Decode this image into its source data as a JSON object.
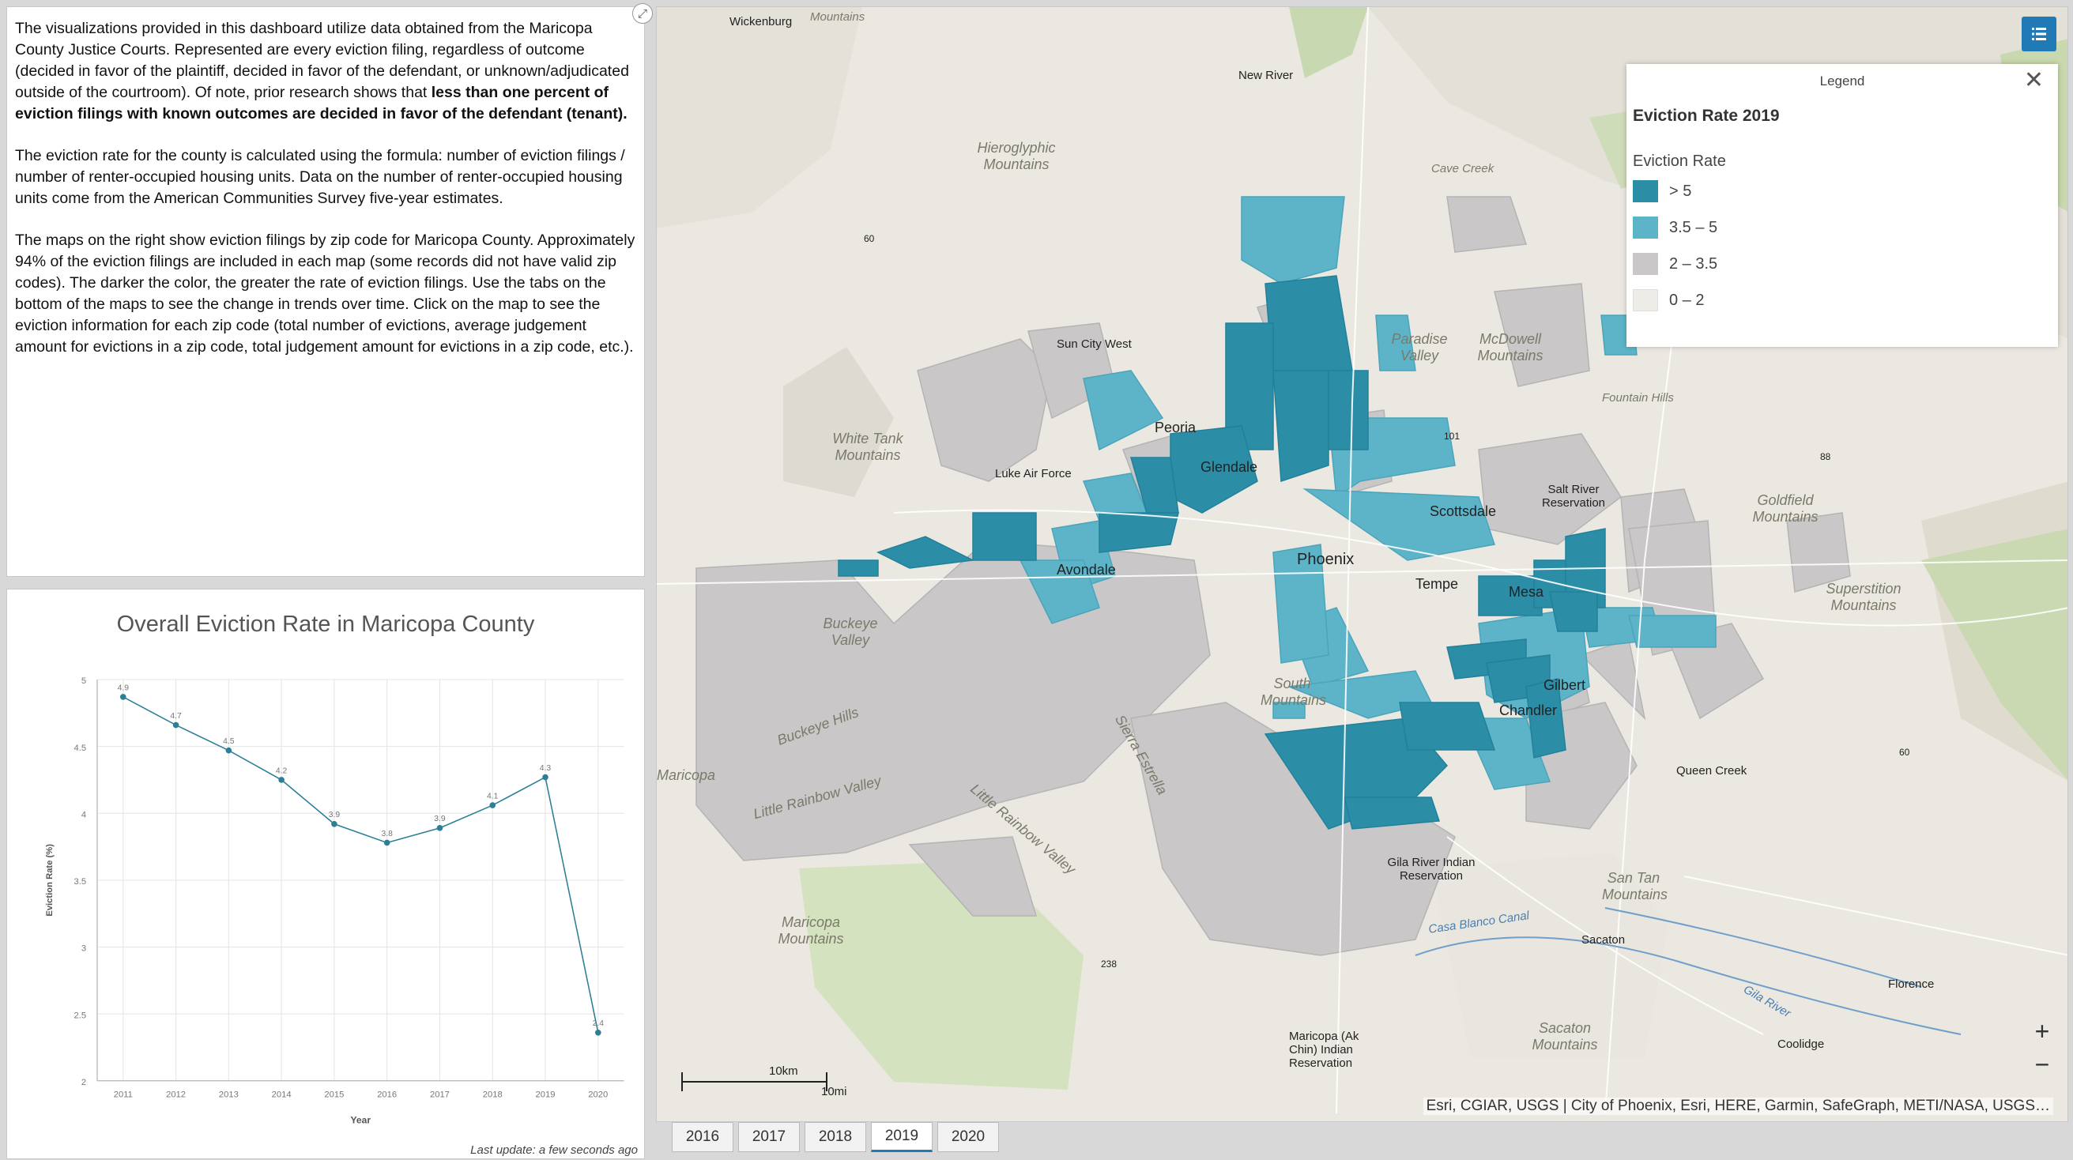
{
  "text_panel": {
    "p1_normal": "The visualizations provided in this dashboard utilize data obtained from the Maricopa County Justice Courts. Represented are every eviction filing, regardless of outcome (decided in favor of the plaintiff, decided in favor of the defendant, or unknown/adjudicated outside of the courtroom). Of note, prior research shows that ",
    "p1_bold": "less than one percent of eviction filings with known outcomes are decided in favor of the defendant (tenant).",
    "p2": "The eviction rate for the county is calculated using the formula: number of eviction filings / number of renter-occupied housing units. Data on the number of renter-occupied housing units come from the American Communities Survey five-year estimates.",
    "p3": "The maps on the right show eviction filings by zip code for Maricopa County. Approximately 94% of the eviction filings are included in each map (some records did not have valid zip codes). The darker the color, the greater the rate of eviction filings. Use the tabs on the bottom of the maps to see the change in trends over time. Click on the map to see the eviction information for each zip code (total number of evictions, average judgement amount for evictions in a zip code, total judgement amount for evictions in a zip code, etc.)."
  },
  "chart_panel": {
    "last_update": "Last update: a few seconds ago"
  },
  "chart_data": {
    "type": "line",
    "title": "Overall Eviction Rate in Maricopa County",
    "xlabel": "Year",
    "ylabel": "Eviction Rate (%)",
    "categories": [
      "2011",
      "2012",
      "2013",
      "2014",
      "2015",
      "2016",
      "2017",
      "2018",
      "2019",
      "2020"
    ],
    "values": [
      4.87,
      4.66,
      4.47,
      4.25,
      3.92,
      3.78,
      3.89,
      4.06,
      4.27,
      2.36
    ],
    "data_labels": [
      "4.9",
      "4.7",
      "4.5",
      "4.2",
      "3.9",
      "3.8",
      "3.9",
      "4.1",
      "4.3",
      "2.4"
    ],
    "yticks": [
      "2",
      "2.5",
      "3",
      "3.5",
      "4",
      "4.5",
      "5"
    ],
    "ylim": [
      2,
      5
    ],
    "grid": true,
    "color": "#2d7f96"
  },
  "map": {
    "legend_header": "Legend",
    "legend_title": "Eviction Rate 2019",
    "legend_field": "Eviction Rate",
    "legend_items": [
      {
        "label": "> 5",
        "color": "#2b8ea6"
      },
      {
        "label": "3.5 – 5",
        "color": "#5db4c8"
      },
      {
        "label": "2 – 3.5",
        "color": "#c9c7c7"
      },
      {
        "label": "0 – 2",
        "color": "#eeece6"
      }
    ],
    "attribution": "Esri, CGIAR, USGS | City of Phoenix, Esri, HERE, Garmin, SafeGraph, METI/NASA, USGS…",
    "scale_km": "10km",
    "scale_mi": "10mi",
    "labels": {
      "wickenburg": "Wickenburg",
      "new_river": "New River",
      "cave_creek": "Cave Creek",
      "hieroglyphic": "Hieroglyphic Mountains",
      "sun_city_west": "Sun City West",
      "peoria": "Peoria",
      "glendale": "Glendale",
      "white_tank": "White Tank Mountains",
      "luke": "Luke Air Force",
      "phoenix": "Phoenix",
      "scottsdale": "Scottsdale",
      "avondale": "Avondale",
      "tempe": "Tempe",
      "mesa": "Mesa",
      "gilbert": "Gilbert",
      "chandler": "Chandler",
      "buckeye_valley": "Buckeye Valley",
      "buckeye_hills": "Buckeye Hills",
      "little_rainbow": "Little Rainbow Valley",
      "rainbow_valley": "Little Rainbow Valley",
      "maricopa": "Maricopa",
      "maricopa_mtns": "Maricopa Mountains",
      "gila_river": "Gila River Indian Reservation",
      "salt_river": "Salt River Reservation",
      "fountain_hills": "Fountain Hills",
      "superstition": "Superstition Mountains",
      "queen_creek": "Queen Creek",
      "san_tan": "San Tan Mountains",
      "sacaton": "Sacaton",
      "sacaton_mtns": "Sacaton Mountains",
      "florence": "Florence",
      "coolidge": "Coolidge",
      "casa_blanco": "Casa Blanco Canal",
      "gila_river_water": "Gila River",
      "maricopa_ak_chin": "Maricopa (Ak Chin) Indian Reservation",
      "paradise_valley": "Paradise Valley",
      "mcdowell": "McDowell Mountains",
      "goldfield": "Goldfield Mountains",
      "south_mountains": "South Mountains",
      "estrella": "Sierra Estrella",
      "mountains_top": "Mountains",
      "r60": "60",
      "r88": "88",
      "r101": "101",
      "r238": "238",
      "r60b": "60"
    }
  },
  "tabs": [
    "2016",
    "2017",
    "2018",
    "2019",
    "2020"
  ],
  "active_tab": "2019"
}
